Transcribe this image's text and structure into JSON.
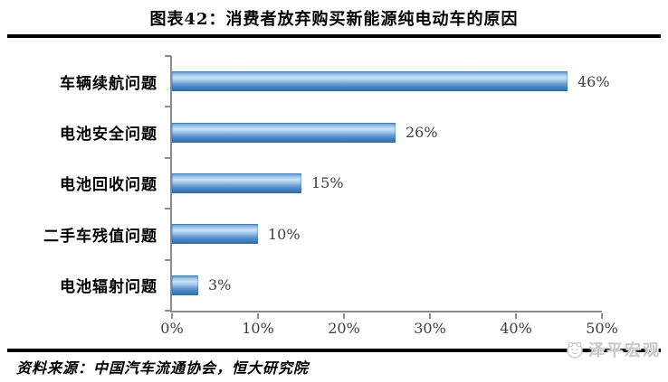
{
  "header": {
    "title": "图表42：消费者放弃购买新能源纯电动车的原因"
  },
  "chart_data": {
    "type": "bar",
    "orientation": "horizontal",
    "title": "图表42：消费者放弃购买新能源纯电动车的原因",
    "categories": [
      "车辆续航问题",
      "电池安全问题",
      "电池回收问题",
      "二手车残值问题",
      "电池辐射问题"
    ],
    "values": [
      46,
      26,
      15,
      10,
      3
    ],
    "value_labels": [
      "46%",
      "26%",
      "15%",
      "10%",
      "3%"
    ],
    "x_ticks": [
      "0%",
      "10%",
      "20%",
      "30%",
      "40%",
      "50%"
    ],
    "xlim": [
      0,
      50
    ],
    "xlabel": "",
    "ylabel": "",
    "grid": false,
    "legend": "none",
    "bar_color_top": "#4389c9",
    "bar_color_highlight": "#c9e1f6",
    "bar_color_bottom": "#2470b2",
    "axis_color": "#8c8c8c",
    "label_color": "#3d3d3d"
  },
  "footer": {
    "source": "资料来源：中国汽车流通协会，恒大研究院"
  },
  "watermark": {
    "label": "泽平宏观",
    "icon": "zeping-macro-mascot-icon",
    "color": "#c9c9c9"
  }
}
